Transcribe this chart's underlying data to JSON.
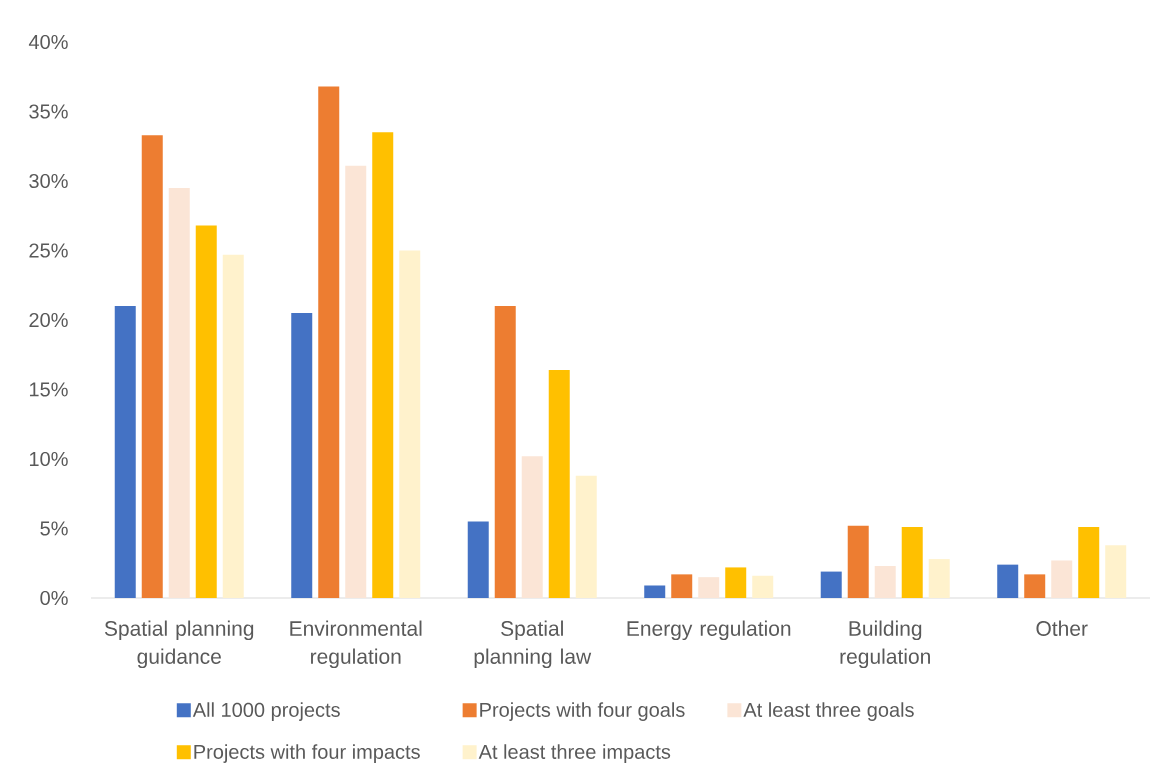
{
  "chart_data": {
    "type": "bar",
    "categories": [
      "Spatial planning guidance",
      "Environmental regulation",
      "Spatial planning law",
      "Energy regulation",
      "Building regulation",
      "Other"
    ],
    "series": [
      {
        "name": "All 1000 projects",
        "color": "#4472c4",
        "values": [
          21.0,
          20.5,
          5.5,
          0.9,
          1.9,
          2.4
        ]
      },
      {
        "name": "Projects with four goals",
        "color": "#ed7d31",
        "values": [
          33.3,
          36.8,
          21.0,
          1.7,
          5.2,
          1.7
        ]
      },
      {
        "name": "At least three goals",
        "color": "#fbe5d6",
        "values": [
          29.5,
          31.1,
          10.2,
          1.5,
          2.3,
          2.7
        ]
      },
      {
        "name": "Projects with four impacts",
        "color": "#ffc000",
        "values": [
          26.8,
          33.5,
          16.4,
          2.2,
          5.1,
          5.1
        ]
      },
      {
        "name": "At least three impacts",
        "color": "#fff2cc",
        "values": [
          24.7,
          25.0,
          8.8,
          1.6,
          2.8,
          3.8
        ]
      }
    ],
    "ylim": [
      0,
      40
    ],
    "yticks": [
      {
        "value": 0,
        "label": "0%"
      },
      {
        "value": 5,
        "label": "5%"
      },
      {
        "value": 10,
        "label": "10%"
      },
      {
        "value": 15,
        "label": "15%"
      },
      {
        "value": 20,
        "label": "20%"
      },
      {
        "value": 25,
        "label": "25%"
      },
      {
        "value": 30,
        "label": "30%"
      },
      {
        "value": 35,
        "label": "35%"
      },
      {
        "value": 40,
        "label": "40%"
      }
    ],
    "legend": "bottom"
  }
}
